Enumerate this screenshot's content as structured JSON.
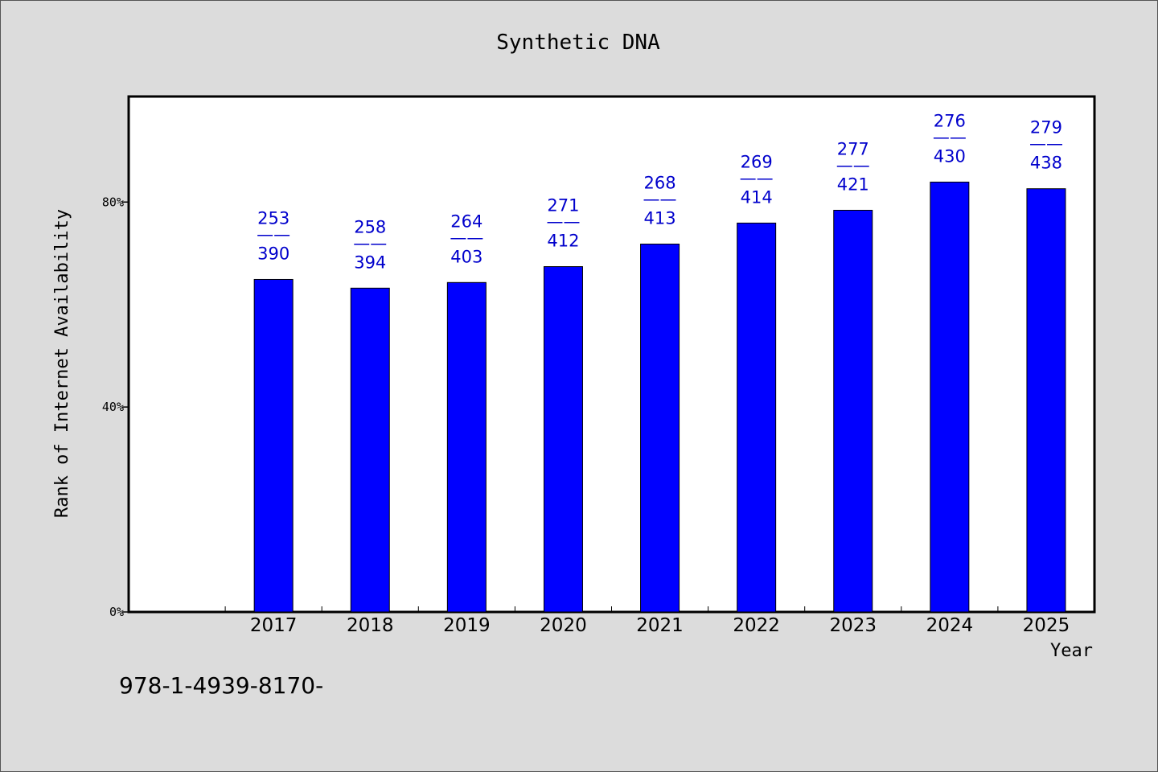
{
  "chart_data": {
    "type": "bar",
    "title": "Synthetic DNA",
    "xlabel": "Year",
    "ylabel": "Rank of Internet Availability",
    "categories": [
      "2017",
      "2018",
      "2019",
      "2020",
      "2021",
      "2022",
      "2023",
      "2024",
      "2025"
    ],
    "values": [
      64.9,
      63.2,
      64.3,
      67.4,
      71.8,
      75.9,
      78.4,
      83.9,
      82.6
    ],
    "data_labels": [
      {
        "top": "253",
        "sep": "——",
        "bottom": "390"
      },
      {
        "top": "258",
        "sep": "——",
        "bottom": "394"
      },
      {
        "top": "264",
        "sep": "——",
        "bottom": "403"
      },
      {
        "top": "271",
        "sep": "——",
        "bottom": "412"
      },
      {
        "top": "268",
        "sep": "——",
        "bottom": "413"
      },
      {
        "top": "269",
        "sep": "——",
        "bottom": "414"
      },
      {
        "top": "277",
        "sep": "——",
        "bottom": "421"
      },
      {
        "top": "276",
        "sep": "——",
        "bottom": "430"
      },
      {
        "top": "279",
        "sep": "——",
        "bottom": "438"
      }
    ],
    "yticks": [
      {
        "value": 0,
        "label": "0%"
      },
      {
        "value": 40,
        "label": "40%"
      },
      {
        "value": 80,
        "label": "80%"
      }
    ],
    "ylim": [
      0,
      100.6
    ],
    "bar_color": "#0000ff",
    "label_color": "#0000cc",
    "plot_background": "#ffffff",
    "page_background": "#dcdcdc",
    "grid": false,
    "legend": "none"
  },
  "footnote": "978-1-4939-8170-"
}
